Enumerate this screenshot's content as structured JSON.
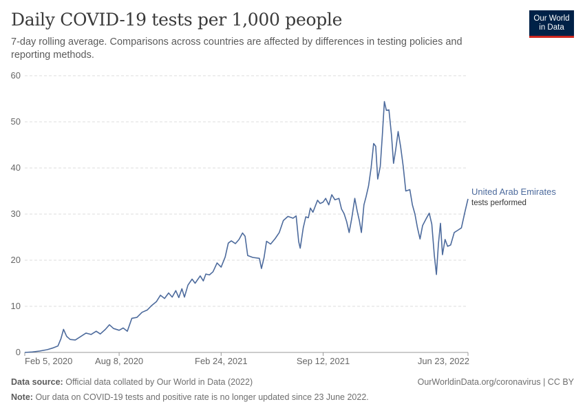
{
  "header": {
    "title": "Daily COVID-19 tests per 1,000 people",
    "subtitle": "7-day rolling average. Comparisons across countries are affected by differences in testing policies and reporting methods.",
    "logo_line1": "Our World",
    "logo_line2": "in Data"
  },
  "footer": {
    "source_label": "Data source:",
    "source_text": "Official data collated by Our World in Data (2022)",
    "note_label": "Note:",
    "note_text": "Our data on COVID-19 tests and positive rate is no longer updated since 23 June 2022.",
    "credit": "OurWorldinData.org/coronavirus | CC BY"
  },
  "colors": {
    "series": "#4c6a9c",
    "grid": "#dddddd",
    "axis": "#999999",
    "logo_bg": "#002147",
    "logo_accent": "#ce261e"
  },
  "chart_data": {
    "type": "line",
    "title": "Daily COVID-19 tests per 1,000 people",
    "ylim": [
      0,
      60
    ],
    "yticks": [
      0,
      10,
      20,
      30,
      40,
      50,
      60
    ],
    "xlim": [
      "2020-02-05",
      "2022-06-23"
    ],
    "xticks": [
      {
        "date": "2020-02-05",
        "label": "Feb 5, 2020"
      },
      {
        "date": "2020-08-08",
        "label": "Aug 8, 2020"
      },
      {
        "date": "2021-02-24",
        "label": "Feb 24, 2021"
      },
      {
        "date": "2021-09-12",
        "label": "Sep 12, 2021"
      },
      {
        "date": "2022-06-23",
        "label": "Jun 23, 2022"
      }
    ],
    "grid": "horizontal-dashed",
    "series": [
      {
        "name": "United Arab Emirates",
        "sublabel": "tests performed",
        "points": [
          [
            "2020-02-05",
            0.0
          ],
          [
            "2020-02-20",
            0.1
          ],
          [
            "2020-03-05",
            0.3
          ],
          [
            "2020-03-20",
            0.6
          ],
          [
            "2020-04-01",
            1.0
          ],
          [
            "2020-04-10",
            1.4
          ],
          [
            "2020-04-16",
            3.0
          ],
          [
            "2020-04-21",
            5.0
          ],
          [
            "2020-04-27",
            3.5
          ],
          [
            "2020-05-04",
            2.8
          ],
          [
            "2020-05-14",
            2.7
          ],
          [
            "2020-05-24",
            3.4
          ],
          [
            "2020-06-04",
            4.2
          ],
          [
            "2020-06-14",
            3.9
          ],
          [
            "2020-06-24",
            4.6
          ],
          [
            "2020-07-02",
            4.0
          ],
          [
            "2020-07-12",
            5.0
          ],
          [
            "2020-07-20",
            6.0
          ],
          [
            "2020-07-28",
            5.2
          ],
          [
            "2020-08-08",
            4.8
          ],
          [
            "2020-08-16",
            5.3
          ],
          [
            "2020-08-24",
            4.6
          ],
          [
            "2020-09-02",
            7.4
          ],
          [
            "2020-09-12",
            7.6
          ],
          [
            "2020-09-22",
            8.7
          ],
          [
            "2020-10-02",
            9.2
          ],
          [
            "2020-10-11",
            10.2
          ],
          [
            "2020-10-20",
            11.0
          ],
          [
            "2020-10-28",
            12.4
          ],
          [
            "2020-11-05",
            11.7
          ],
          [
            "2020-11-13",
            12.9
          ],
          [
            "2020-11-20",
            12.0
          ],
          [
            "2020-11-27",
            13.4
          ],
          [
            "2020-12-03",
            11.9
          ],
          [
            "2020-12-09",
            13.8
          ],
          [
            "2020-12-14",
            12.0
          ],
          [
            "2020-12-21",
            14.6
          ],
          [
            "2020-12-29",
            15.9
          ],
          [
            "2021-01-04",
            15.0
          ],
          [
            "2021-01-14",
            16.6
          ],
          [
            "2021-01-20",
            15.5
          ],
          [
            "2021-01-25",
            17.0
          ],
          [
            "2021-02-01",
            16.8
          ],
          [
            "2021-02-08",
            17.5
          ],
          [
            "2021-02-16",
            19.4
          ],
          [
            "2021-02-24",
            18.5
          ],
          [
            "2021-03-04",
            20.7
          ],
          [
            "2021-03-10",
            23.7
          ],
          [
            "2021-03-16",
            24.2
          ],
          [
            "2021-03-24",
            23.6
          ],
          [
            "2021-03-31",
            24.5
          ],
          [
            "2021-04-07",
            25.9
          ],
          [
            "2021-04-12",
            25.2
          ],
          [
            "2021-04-17",
            21.0
          ],
          [
            "2021-04-27",
            20.6
          ],
          [
            "2021-05-10",
            20.4
          ],
          [
            "2021-05-14",
            18.2
          ],
          [
            "2021-05-19",
            20.5
          ],
          [
            "2021-05-24",
            24.1
          ],
          [
            "2021-06-01",
            23.5
          ],
          [
            "2021-06-10",
            24.7
          ],
          [
            "2021-06-18",
            26.0
          ],
          [
            "2021-06-26",
            28.6
          ],
          [
            "2021-07-05",
            29.5
          ],
          [
            "2021-07-15",
            29.1
          ],
          [
            "2021-07-21",
            29.6
          ],
          [
            "2021-07-26",
            24.0
          ],
          [
            "2021-07-29",
            22.6
          ],
          [
            "2021-08-04",
            27.0
          ],
          [
            "2021-08-09",
            29.4
          ],
          [
            "2021-08-14",
            29.2
          ],
          [
            "2021-08-18",
            31.3
          ],
          [
            "2021-08-23",
            30.4
          ],
          [
            "2021-09-01",
            33.0
          ],
          [
            "2021-09-06",
            32.3
          ],
          [
            "2021-09-12",
            32.6
          ],
          [
            "2021-09-17",
            33.4
          ],
          [
            "2021-09-23",
            32.0
          ],
          [
            "2021-09-29",
            34.2
          ],
          [
            "2021-10-05",
            33.1
          ],
          [
            "2021-10-13",
            33.4
          ],
          [
            "2021-10-18",
            31.1
          ],
          [
            "2021-10-23",
            30.1
          ],
          [
            "2021-10-28",
            28.4
          ],
          [
            "2021-11-02",
            26.0
          ],
          [
            "2021-11-07",
            29.0
          ],
          [
            "2021-11-13",
            33.4
          ],
          [
            "2021-11-18",
            30.5
          ],
          [
            "2021-11-22",
            28.6
          ],
          [
            "2021-11-26",
            26.0
          ],
          [
            "2021-12-01",
            32.0
          ],
          [
            "2021-12-05",
            33.7
          ],
          [
            "2021-12-10",
            36.1
          ],
          [
            "2021-12-15",
            40.0
          ],
          [
            "2021-12-20",
            45.3
          ],
          [
            "2021-12-24",
            44.7
          ],
          [
            "2021-12-28",
            37.6
          ],
          [
            "2022-01-02",
            40.3
          ],
          [
            "2022-01-06",
            47.0
          ],
          [
            "2022-01-10",
            54.4
          ],
          [
            "2022-01-14",
            52.5
          ],
          [
            "2022-01-19",
            52.6
          ],
          [
            "2022-01-24",
            47.2
          ],
          [
            "2022-01-28",
            41.0
          ],
          [
            "2022-02-01",
            43.8
          ],
          [
            "2022-02-06",
            47.9
          ],
          [
            "2022-02-11",
            44.5
          ],
          [
            "2022-02-16",
            40.3
          ],
          [
            "2022-02-21",
            35.0
          ],
          [
            "2022-03-01",
            35.3
          ],
          [
            "2022-03-06",
            32.0
          ],
          [
            "2022-03-11",
            30.0
          ],
          [
            "2022-03-16",
            27.0
          ],
          [
            "2022-03-21",
            24.6
          ],
          [
            "2022-03-26",
            27.5
          ],
          [
            "2022-04-02",
            29.0
          ],
          [
            "2022-04-08",
            30.2
          ],
          [
            "2022-04-13",
            27.8
          ],
          [
            "2022-04-18",
            21.0
          ],
          [
            "2022-04-22",
            16.9
          ],
          [
            "2022-04-26",
            23.5
          ],
          [
            "2022-04-30",
            28.0
          ],
          [
            "2022-05-04",
            21.2
          ],
          [
            "2022-05-09",
            24.5
          ],
          [
            "2022-05-14",
            23.0
          ],
          [
            "2022-05-20",
            23.3
          ],
          [
            "2022-05-27",
            26.0
          ],
          [
            "2022-06-03",
            26.5
          ],
          [
            "2022-06-10",
            27.0
          ],
          [
            "2022-06-17",
            30.5
          ],
          [
            "2022-06-23",
            33.3
          ]
        ]
      }
    ]
  }
}
